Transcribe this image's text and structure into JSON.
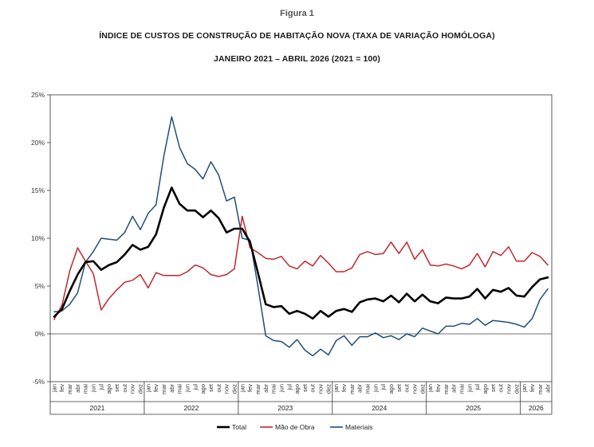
{
  "figure": {
    "label": "Figura 1",
    "title": "ÍNDICE DE CUSTOS DE CONSTRUÇÃO DE HABITAÇÃO NOVA (TAXA DE VARIAÇÃO HOMÓLOGA)",
    "subtitle": "JANEIRO 2021 – ABRIL 2026 (2021 = 100)"
  },
  "chart_data": {
    "type": "line",
    "ylim": [
      -5,
      25
    ],
    "yticks": [
      "-5%",
      "0%",
      "5%",
      "10%",
      "15%",
      "20%",
      "25%"
    ],
    "ytick_values": [
      -5,
      0,
      5,
      10,
      15,
      20,
      25
    ],
    "month_labels": [
      "jan",
      "fev",
      "mar",
      "abr",
      "mai",
      "jun",
      "jul",
      "ago",
      "set",
      "out",
      "nov",
      "dez"
    ],
    "years": [
      {
        "label": "2021",
        "months": 12
      },
      {
        "label": "2022",
        "months": 12
      },
      {
        "label": "2023",
        "months": 12
      },
      {
        "label": "2024",
        "months": 12
      },
      {
        "label": "2025",
        "months": 12
      },
      {
        "label": "2026",
        "months": 4
      }
    ],
    "grid": false,
    "legend_position": "bottom",
    "series": [
      {
        "name": "Total",
        "color": "#000000",
        "values": [
          1.8,
          2.6,
          4.5,
          6.2,
          7.5,
          7.6,
          6.7,
          7.2,
          7.5,
          8.3,
          9.3,
          8.8,
          9.1,
          10.4,
          13.2,
          15.3,
          13.6,
          12.9,
          12.9,
          12.2,
          12.9,
          12.1,
          10.6,
          11.0,
          11.0,
          9.6,
          6.4,
          3.1,
          2.8,
          2.9,
          2.1,
          2.4,
          2.1,
          1.6,
          2.4,
          1.8,
          2.4,
          2.6,
          2.3,
          3.3,
          3.6,
          3.7,
          3.4,
          4.0,
          3.3,
          4.2,
          3.4,
          4.1,
          3.4,
          3.2,
          3.8,
          3.7,
          3.7,
          3.9,
          4.7,
          3.7,
          4.6,
          4.4,
          4.8,
          4.0,
          3.9,
          4.9,
          5.7,
          5.9
        ]
      },
      {
        "name": "Mão de Obra",
        "color": "#c0272d",
        "values": [
          1.5,
          3.0,
          6.6,
          9.0,
          7.6,
          6.3,
          2.5,
          3.7,
          4.6,
          5.4,
          5.6,
          6.2,
          4.8,
          6.4,
          6.1,
          6.1,
          6.1,
          6.5,
          7.2,
          6.9,
          6.2,
          6.0,
          6.2,
          6.8,
          12.3,
          9.0,
          8.5,
          7.9,
          7.8,
          8.1,
          7.1,
          6.8,
          7.6,
          7.1,
          8.2,
          7.4,
          6.5,
          6.5,
          6.9,
          8.3,
          8.6,
          8.3,
          8.4,
          9.6,
          8.4,
          9.6,
          7.8,
          8.8,
          7.2,
          7.1,
          7.3,
          7.1,
          6.8,
          7.2,
          8.4,
          7.0,
          8.6,
          8.2,
          9.1,
          7.6,
          7.6,
          8.5,
          8.1,
          7.2
        ]
      },
      {
        "name": "Materiais",
        "color": "#1f4e79",
        "values": [
          2.3,
          2.4,
          3.1,
          4.3,
          7.5,
          8.6,
          10.0,
          9.9,
          9.8,
          10.6,
          12.3,
          10.9,
          12.6,
          13.5,
          18.6,
          22.7,
          19.5,
          17.8,
          17.2,
          16.2,
          18.0,
          16.6,
          13.9,
          14.3,
          10.0,
          9.8,
          5.0,
          -0.2,
          -0.7,
          -0.8,
          -1.4,
          -0.6,
          -1.7,
          -2.3,
          -1.6,
          -2.2,
          -0.7,
          -0.2,
          -1.2,
          -0.3,
          -0.3,
          0.1,
          -0.4,
          -0.2,
          -0.6,
          0.0,
          -0.3,
          0.6,
          0.3,
          0.0,
          0.8,
          0.8,
          1.1,
          1.0,
          1.6,
          0.9,
          1.4,
          1.3,
          1.2,
          1.0,
          0.7,
          1.6,
          3.6,
          4.7
        ]
      }
    ]
  }
}
